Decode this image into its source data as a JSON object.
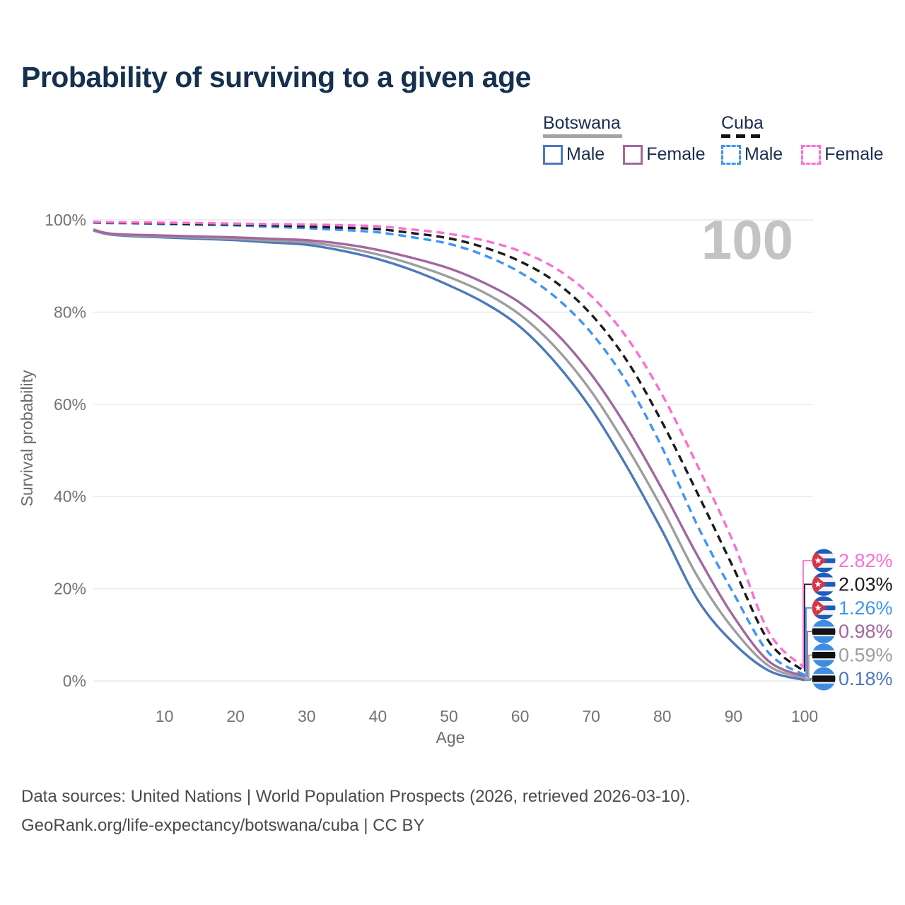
{
  "header": {
    "title": "Probability of surviving to a given age"
  },
  "legend": {
    "groups": [
      {
        "name": "Botswana",
        "line_style": "solid",
        "underline_color": "#a3a3a3",
        "items": [
          {
            "label": "Male",
            "color": "#4d79bc"
          },
          {
            "label": "Female",
            "color": "#a2679f"
          }
        ]
      },
      {
        "name": "Cuba",
        "line_style": "dashed",
        "underline_color": "#111111",
        "items": [
          {
            "label": "Male",
            "color": "#3d95f5"
          },
          {
            "label": "Female",
            "color": "#fb6fd3"
          }
        ]
      }
    ]
  },
  "chart_data": {
    "type": "line",
    "title": "Probability of surviving to a given age",
    "xlabel": "Age",
    "ylabel": "Survival probability",
    "xlim": [
      0,
      100
    ],
    "ylim": [
      0,
      100
    ],
    "x_ticks": [
      10,
      20,
      30,
      40,
      50,
      60,
      70,
      80,
      90,
      100
    ],
    "y_ticks": [
      0,
      20,
      40,
      60,
      80,
      100
    ],
    "y_tick_labels": [
      "0%",
      "20%",
      "40%",
      "60%",
      "80%",
      "100%"
    ],
    "grid": "horizontal",
    "legend_position": "top-right",
    "hover_age_label": "100",
    "ages": [
      0,
      2,
      5,
      10,
      15,
      20,
      25,
      30,
      35,
      40,
      45,
      50,
      55,
      60,
      65,
      70,
      75,
      80,
      85,
      90,
      95,
      100
    ],
    "series": [
      {
        "name": "Cuba Female",
        "country": "Cuba",
        "sex": "Female",
        "color": "#fb6fd3",
        "dash": true,
        "values": [
          99.6,
          99.5,
          99.45,
          99.4,
          99.3,
          99.2,
          99.1,
          99.0,
          98.85,
          98.6,
          97.9,
          97.0,
          95.5,
          93.2,
          89.5,
          83.5,
          74.5,
          62.0,
          46.5,
          30.0,
          10.5,
          2.82
        ],
        "end_label": "2.82%",
        "flag": "cuba"
      },
      {
        "name": "Cuba Both sexes",
        "country": "Cuba",
        "sex": "Both",
        "color": "#1a1a1a",
        "dash": true,
        "values": [
          99.5,
          99.4,
          99.35,
          99.25,
          99.1,
          99.0,
          98.8,
          98.6,
          98.3,
          98.0,
          97.1,
          96.0,
          94.0,
          91.0,
          86.5,
          79.5,
          69.5,
          56.0,
          40.5,
          24.5,
          8.5,
          2.03
        ],
        "end_label": "2.03%",
        "flag": "cuba"
      },
      {
        "name": "Cuba Male",
        "country": "Cuba",
        "sex": "Male",
        "color": "#3d95f5",
        "dash": true,
        "values": [
          99.4,
          99.3,
          99.25,
          99.1,
          98.95,
          98.8,
          98.5,
          98.2,
          97.8,
          97.3,
          96.2,
          94.8,
          92.3,
          88.6,
          83.2,
          75.5,
          64.8,
          50.5,
          33.5,
          19.0,
          6.0,
          1.26
        ],
        "end_label": "1.26%",
        "flag": "cuba"
      },
      {
        "name": "Botswana Female",
        "country": "Botswana",
        "sex": "Female",
        "color": "#a2679f",
        "dash": false,
        "values": [
          97.9,
          97.1,
          96.8,
          96.6,
          96.4,
          96.2,
          95.9,
          95.6,
          94.8,
          93.5,
          91.7,
          89.5,
          86.3,
          82.0,
          75.5,
          66.5,
          55.0,
          41.5,
          27.0,
          14.0,
          4.2,
          0.98
        ],
        "end_label": "0.98%",
        "flag": "botswana"
      },
      {
        "name": "Botswana Both sexes",
        "country": "Botswana",
        "sex": "Both",
        "color": "#9e9e9e",
        "dash": false,
        "values": [
          97.8,
          97.0,
          96.65,
          96.4,
          96.15,
          95.9,
          95.5,
          95.1,
          94.1,
          92.5,
          90.3,
          87.6,
          84.2,
          79.4,
          72.3,
          62.8,
          50.8,
          37.3,
          22.5,
          11.2,
          3.2,
          0.59
        ],
        "end_label": "0.59%",
        "flag": "botswana"
      },
      {
        "name": "Botswana Male",
        "country": "Botswana",
        "sex": "Male",
        "color": "#4d79bc",
        "dash": false,
        "values": [
          97.7,
          96.9,
          96.5,
          96.2,
          95.9,
          95.6,
          95.1,
          94.6,
          93.3,
          91.5,
          89.0,
          85.8,
          82.0,
          76.8,
          69.0,
          59.0,
          46.5,
          32.5,
          17.5,
          8.2,
          2.2,
          0.18
        ],
        "end_label": "0.18%",
        "flag": "botswana"
      }
    ],
    "flag_colors": {
      "cuba": {
        "blue": "#1c5cbd",
        "white": "#f2f2f2",
        "red": "#d63447",
        "star": "#ffffff"
      },
      "botswana": {
        "azure": "#3e8ce2",
        "white": "#f2f2f2",
        "black": "#111111"
      }
    }
  },
  "footer": {
    "line1": "Data sources: United Nations | World Population Prospects (2026, retrieved 2026-03-10).",
    "line2": "GeoRank.org/life-expectancy/botswana/cuba | CC BY"
  }
}
